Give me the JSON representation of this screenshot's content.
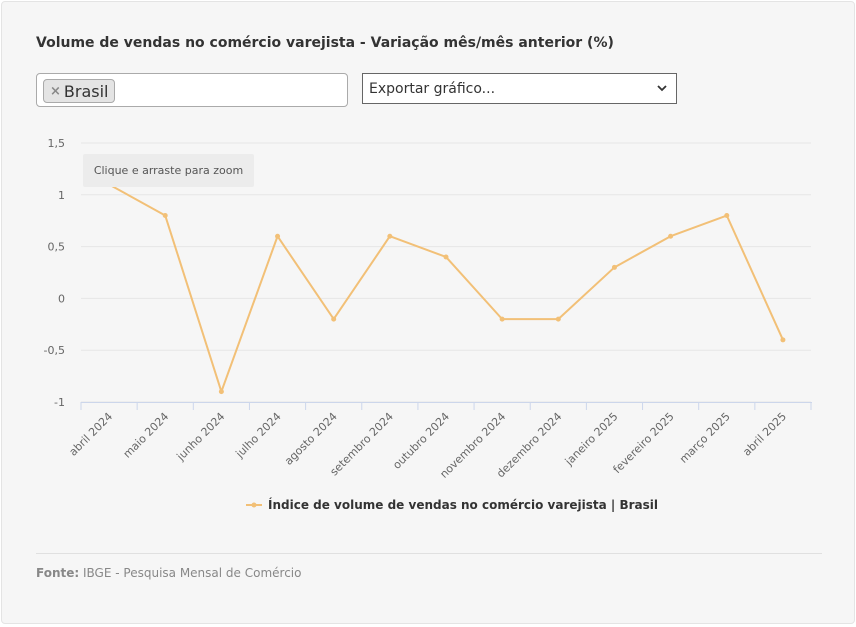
{
  "title": "Volume de vendas no comércio varejista - Variação mês/mês anterior (%)",
  "filter": {
    "chip_label": "Brasil",
    "remove_symbol": "×"
  },
  "export": {
    "label": "Exportar gráfico..."
  },
  "zoom_hint": "Clique e arraste para zoom",
  "legend_label": "Índice de volume de vendas no comércio varejista | Brasil",
  "source": {
    "prefix": "Fonte:",
    "text": "IBGE - Pesquisa Mensal de Comércio"
  },
  "colors": {
    "series": "#f2c077",
    "grid": "#e6e6e6",
    "axis": "#ccd6eb"
  },
  "chart_data": {
    "type": "line",
    "categories": [
      "abril 2024",
      "maio 2024",
      "junho 2024",
      "julho 2024",
      "agosto 2024",
      "setembro 2024",
      "outubro 2024",
      "novembro 2024",
      "dezembro 2024",
      "janeiro 2025",
      "fevereiro 2025",
      "março 2025",
      "abril 2025"
    ],
    "series": [
      {
        "name": "Índice de volume de vendas no comércio varejista | Brasil",
        "values": [
          1.1,
          0.8,
          -0.9,
          0.6,
          -0.2,
          0.6,
          0.4,
          -0.2,
          -0.2,
          0.3,
          0.6,
          0.8,
          -0.4
        ]
      }
    ],
    "ylim": [
      -1,
      1.5
    ],
    "yticks": [
      1.5,
      1,
      0.5,
      0,
      -0.5,
      -1
    ],
    "ytick_labels": [
      "1,5",
      "1",
      "0,5",
      "0",
      "-0,5",
      "-1"
    ],
    "grid": true,
    "legend": "bottom-center"
  }
}
